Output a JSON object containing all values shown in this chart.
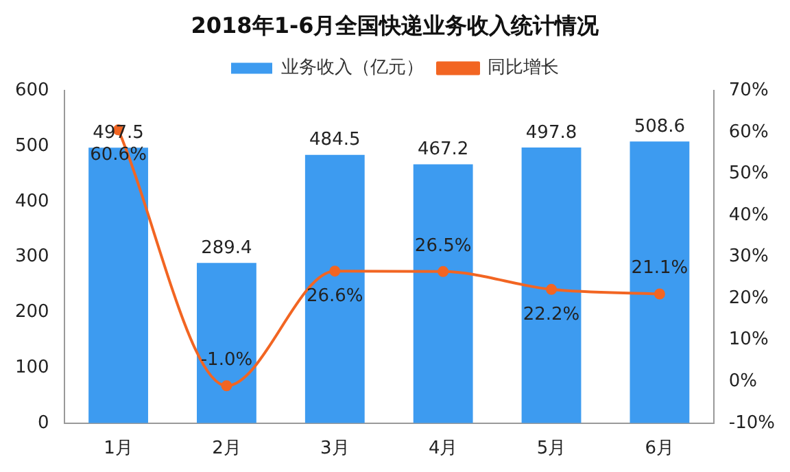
{
  "chart_data": {
    "type": "bar",
    "title": "2018年1-6月全国快递业务收入统计情况",
    "categories": [
      "1月",
      "2月",
      "3月",
      "4月",
      "5月",
      "6月"
    ],
    "series": [
      {
        "name": "业务收入（亿元）",
        "color": "#3d9bf0",
        "values": [
          497.5,
          289.4,
          484.5,
          467.2,
          497.8,
          508.6
        ]
      },
      {
        "name": "同比增长",
        "type": "line",
        "axis": "y2",
        "color": "#f26522",
        "marker": "circle",
        "values": [
          60.6,
          -1.0,
          26.6,
          26.5,
          22.2,
          21.1
        ],
        "value_labels": [
          "60.6%",
          "-1.0%",
          "26.6%",
          "26.5%",
          "22.2%",
          "21.1%"
        ]
      }
    ],
    "ylim": [
      0,
      600
    ],
    "yticks": [
      0,
      100,
      200,
      300,
      400,
      500,
      600
    ],
    "y2lim": [
      -10,
      70
    ],
    "y2ticks": [
      {
        "value": -10,
        "label": "-10%"
      },
      {
        "value": 0,
        "label": "0%"
      },
      {
        "value": 10,
        "label": "10%"
      },
      {
        "value": 20,
        "label": "20%"
      },
      {
        "value": 30,
        "label": "30%"
      },
      {
        "value": 40,
        "label": "40%"
      },
      {
        "value": 50,
        "label": "50%"
      },
      {
        "value": 60,
        "label": "60%"
      },
      {
        "value": 70,
        "label": "70%"
      }
    ],
    "grid": false,
    "legend": "top",
    "data_labels": true
  }
}
